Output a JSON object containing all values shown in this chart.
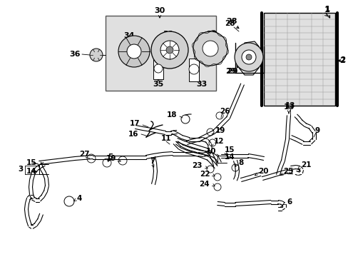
{
  "bg_color": "#ffffff",
  "fig_width": 4.89,
  "fig_height": 3.6,
  "dpi": 100,
  "line_color": "#000000",
  "box_fill": "#e0e0e0",
  "condenser_fill": "#d8d8d8"
}
